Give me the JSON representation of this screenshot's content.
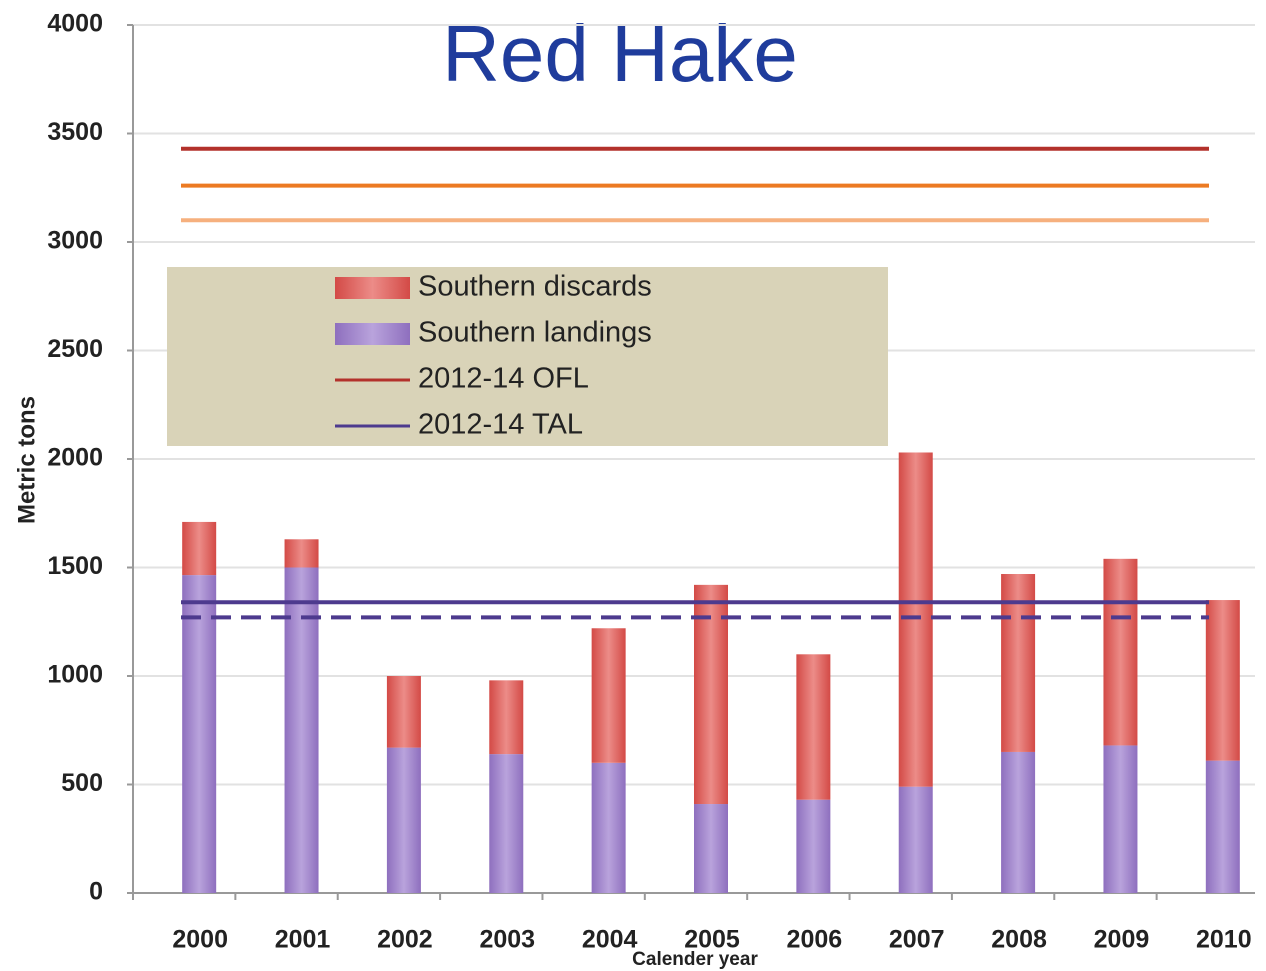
{
  "chart_data": {
    "type": "stacked_bar",
    "title": "Red Hake",
    "y_label": "Metric tons",
    "x_label": "Calender year",
    "categories": [
      "2000",
      "2001",
      "2002",
      "2003",
      "2004",
      "2005",
      "2006",
      "2007",
      "2008",
      "2009",
      "2010"
    ],
    "series": [
      {
        "name": "Southern landings",
        "color": "#9a7cc6",
        "values": [
          1465,
          1500,
          670,
          640,
          600,
          410,
          430,
          490,
          650,
          680,
          610
        ]
      },
      {
        "name": "Southern discards",
        "color": "#d9534f",
        "values": [
          245,
          130,
          330,
          340,
          620,
          1010,
          670,
          1540,
          820,
          860,
          740
        ]
      }
    ],
    "reference_lines": [
      {
        "name": "2012-14 OFL",
        "color": "#b3312b",
        "value": 3430
      },
      {
        "color": "#ec7a22",
        "value": 3260
      },
      {
        "color": "#f6b07e",
        "value": 3100
      },
      {
        "name": "2012-14 TAL",
        "color": "#4d3a8e",
        "value": 1340
      },
      {
        "color": "#4d3a8e",
        "value": 1270,
        "dashed": true
      }
    ],
    "ylim": [
      0,
      4000
    ],
    "yticks": [
      0,
      500,
      1000,
      1500,
      2000,
      2500,
      3000,
      3500,
      4000
    ],
    "grid": true
  }
}
